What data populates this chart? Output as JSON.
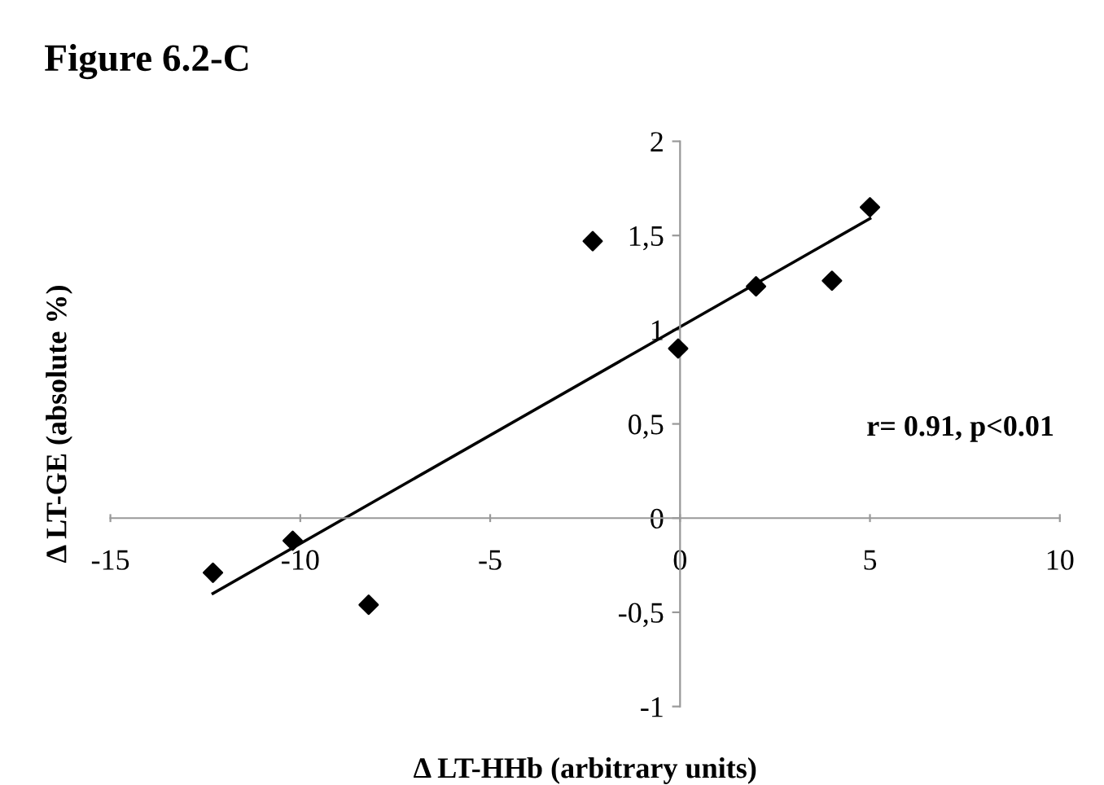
{
  "chart_data": {
    "type": "scatter",
    "title": "Figure 6.2-C",
    "xlabel": "Δ LT-HHb (arbitrary units)",
    "ylabel": "Δ LT-GE (absolute %)",
    "annotations": [
      "r= 0.91, p<0.01"
    ],
    "xlim": [
      -15,
      10
    ],
    "xticks": [
      -15,
      -10,
      -5,
      0,
      5,
      10
    ],
    "ylim": [
      -1,
      2
    ],
    "yticks": [
      -1,
      {
        "value": -0.5,
        "label": "-0,5"
      },
      0,
      {
        "value": 0.5,
        "label": "0,5"
      },
      1,
      {
        "value": 1.5,
        "label": "1,5"
      },
      2
    ],
    "grid": false,
    "legend": false,
    "series": [
      {
        "color": "#000000",
        "marker": "diamond",
        "x": [
          -12.3,
          -10.2,
          -8.2,
          -2.3,
          -0.05,
          2.0,
          4.0,
          5.0
        ],
        "values": [
          -0.29,
          -0.12,
          -0.46,
          1.47,
          0.9,
          1.23,
          1.26,
          1.65
        ]
      },
      {
        "type": "line",
        "color": "#000000",
        "marker": "none",
        "line_style": "solid",
        "x": [
          -12.3,
          5.0
        ],
        "values": [
          -0.4,
          1.59
        ]
      }
    ]
  }
}
